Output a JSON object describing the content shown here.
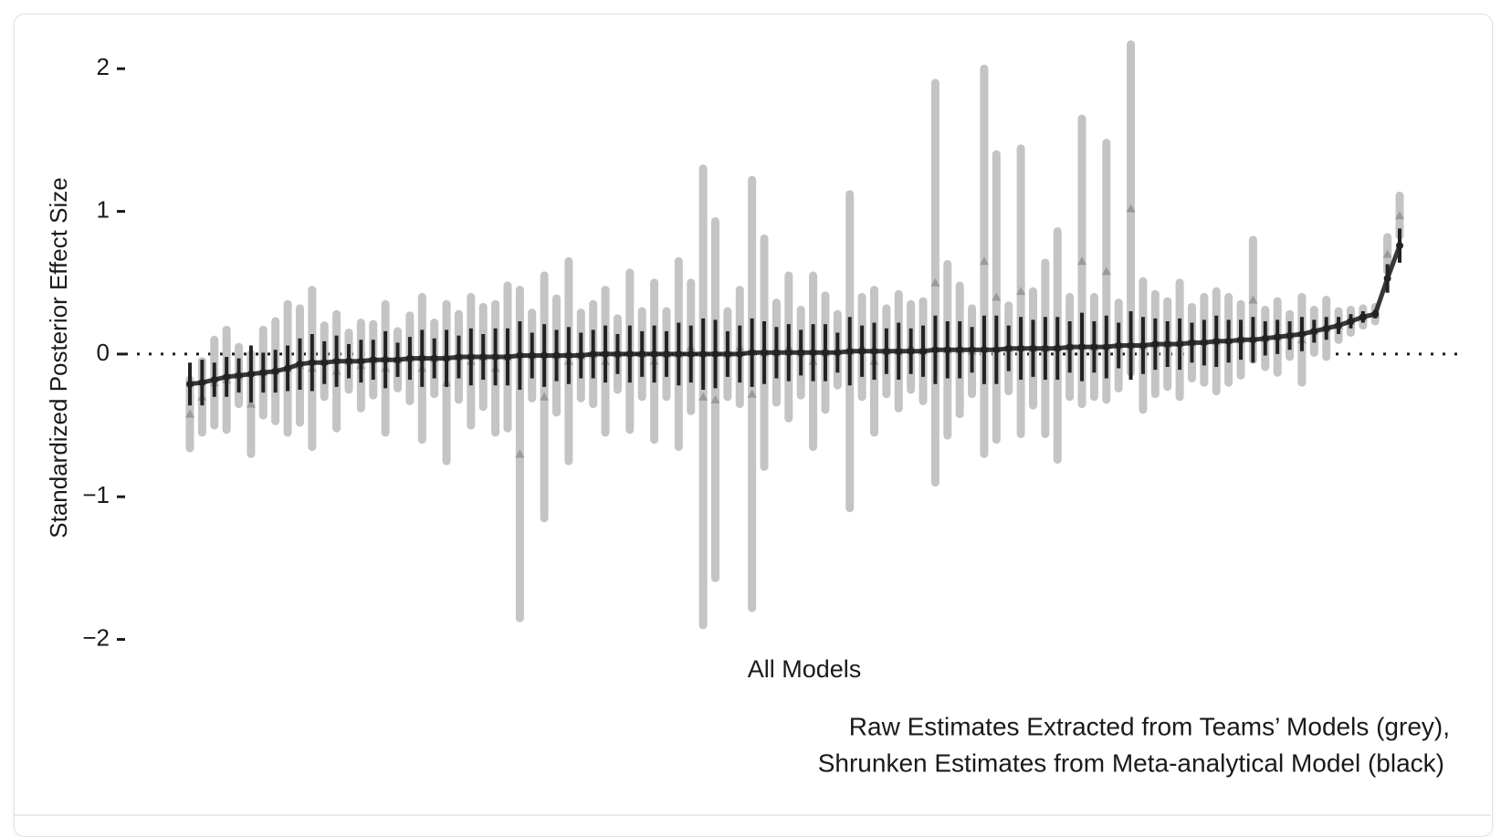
{
  "chart_data": {
    "type": "errorbar",
    "y_label": "Standardized Posterior Effect Size",
    "x_label": "All Models",
    "caption": [
      "Raw Estimates Extracted from Teams’ Models (grey),",
      "Shrunken Estimates from Meta-analytical Model (black)"
    ],
    "ylim": [
      -2.15,
      2.2
    ],
    "yticks": [
      {
        "value": -2,
        "label": "−2"
      },
      {
        "value": -1,
        "label": "−1"
      },
      0,
      1,
      2
    ],
    "reference_line": 0,
    "series": [
      {
        "color": "#c4c4c4",
        "marker_color": "#9a9a9a",
        "values": [
          -0.42,
          -0.3,
          -0.2,
          -0.18,
          -0.15,
          -0.35,
          -0.13,
          -0.12,
          -0.1,
          -0.08,
          -0.1,
          -0.05,
          -0.12,
          -0.05,
          -0.08,
          -0.04,
          -0.1,
          -0.04,
          -0.03,
          -0.1,
          -0.03,
          -0.2,
          -0.02,
          -0.05,
          -0.02,
          -0.1,
          -0.02,
          -0.7,
          -0.01,
          -0.3,
          -0.01,
          -0.05,
          -0.01,
          0,
          -0.05,
          0,
          0.02,
          0,
          -0.05,
          0,
          0,
          0.05,
          -0.3,
          -0.32,
          0,
          0.05,
          -0.28,
          0.01,
          0.01,
          0.05,
          0.01,
          -0.05,
          0.01,
          0.03,
          0.02,
          0.05,
          -0.05,
          0.02,
          0.02,
          0.05,
          0.02,
          0.5,
          0.03,
          0.03,
          0.02,
          0.65,
          0.4,
          0.04,
          0.44,
          0.04,
          0.04,
          0.06,
          0.05,
          0.65,
          0.05,
          0.58,
          0.06,
          1.02,
          0.06,
          0.07,
          0.07,
          0.1,
          0.08,
          0.1,
          0.09,
          0.1,
          0.1,
          0.38,
          0.11,
          0.12,
          0.13,
          0.1,
          0.16,
          0.18,
          0.2,
          0.23,
          0.26,
          0.28,
          0.7,
          0.97
        ],
        "errors": [
          0.24,
          0.25,
          0.3,
          0.35,
          0.2,
          0.35,
          0.3,
          0.35,
          0.45,
          0.4,
          0.55,
          0.25,
          0.4,
          0.2,
          0.3,
          0.25,
          0.45,
          0.2,
          0.3,
          0.5,
          0.25,
          0.55,
          0.3,
          0.45,
          0.35,
          0.45,
          0.5,
          1.15,
          0.3,
          0.85,
          0.4,
          0.7,
          0.3,
          0.35,
          0.5,
          0.25,
          0.55,
          0.3,
          0.55,
          0.3,
          0.65,
          0.45,
          1.6,
          1.25,
          0.3,
          0.4,
          1.5,
          0.8,
          0.35,
          0.5,
          0.3,
          0.6,
          0.4,
          0.25,
          1.1,
          0.35,
          0.5,
          0.3,
          0.4,
          0.3,
          0.35,
          1.4,
          0.6,
          0.45,
          0.3,
          1.35,
          1.0,
          0.3,
          1.0,
          0.4,
          0.6,
          0.8,
          0.35,
          1.0,
          0.35,
          0.9,
          0.3,
          1.15,
          0.45,
          0.35,
          0.3,
          0.4,
          0.25,
          0.3,
          0.35,
          0.3,
          0.25,
          0.42,
          0.2,
          0.25,
          0.15,
          0.3,
          0.15,
          0.2,
          0.1,
          0.08,
          0.06,
          0.05,
          0.12,
          0.14
        ]
      },
      {
        "color": "#222222",
        "values": [
          -0.21,
          -0.2,
          -0.18,
          -0.16,
          -0.15,
          -0.14,
          -0.13,
          -0.12,
          -0.1,
          -0.07,
          -0.06,
          -0.06,
          -0.05,
          -0.05,
          -0.05,
          -0.04,
          -0.04,
          -0.04,
          -0.03,
          -0.03,
          -0.03,
          -0.03,
          -0.02,
          -0.02,
          -0.02,
          -0.02,
          -0.02,
          -0.01,
          -0.01,
          -0.01,
          -0.01,
          -0.01,
          -0.01,
          0,
          0,
          0,
          0,
          0,
          0,
          0,
          0,
          0,
          0,
          0,
          0,
          0,
          0.01,
          0.01,
          0.01,
          0.01,
          0.01,
          0.01,
          0.01,
          0.01,
          0.02,
          0.02,
          0.02,
          0.02,
          0.02,
          0.02,
          0.02,
          0.03,
          0.03,
          0.03,
          0.03,
          0.03,
          0.03,
          0.04,
          0.04,
          0.04,
          0.04,
          0.04,
          0.05,
          0.05,
          0.05,
          0.05,
          0.06,
          0.06,
          0.06,
          0.07,
          0.07,
          0.07,
          0.08,
          0.08,
          0.09,
          0.09,
          0.1,
          0.1,
          0.11,
          0.12,
          0.13,
          0.14,
          0.16,
          0.18,
          0.2,
          0.23,
          0.26,
          0.28,
          0.53,
          0.76
        ],
        "errors": [
          0.15,
          0.16,
          0.12,
          0.14,
          0.12,
          0.2,
          0.14,
          0.15,
          0.16,
          0.18,
          0.2,
          0.15,
          0.18,
          0.12,
          0.15,
          0.14,
          0.2,
          0.12,
          0.15,
          0.2,
          0.14,
          0.2,
          0.15,
          0.2,
          0.16,
          0.2,
          0.2,
          0.24,
          0.16,
          0.22,
          0.18,
          0.2,
          0.16,
          0.17,
          0.2,
          0.14,
          0.2,
          0.16,
          0.2,
          0.16,
          0.22,
          0.2,
          0.25,
          0.24,
          0.16,
          0.2,
          0.24,
          0.22,
          0.18,
          0.2,
          0.16,
          0.2,
          0.2,
          0.14,
          0.24,
          0.18,
          0.2,
          0.16,
          0.2,
          0.16,
          0.18,
          0.24,
          0.2,
          0.2,
          0.16,
          0.24,
          0.24,
          0.16,
          0.22,
          0.2,
          0.22,
          0.22,
          0.18,
          0.24,
          0.18,
          0.22,
          0.16,
          0.24,
          0.2,
          0.18,
          0.16,
          0.18,
          0.14,
          0.16,
          0.18,
          0.15,
          0.14,
          0.16,
          0.12,
          0.12,
          0.1,
          0.12,
          0.08,
          0.08,
          0.06,
          0.05,
          0.04,
          0.03,
          0.1,
          0.12
        ]
      }
    ]
  }
}
